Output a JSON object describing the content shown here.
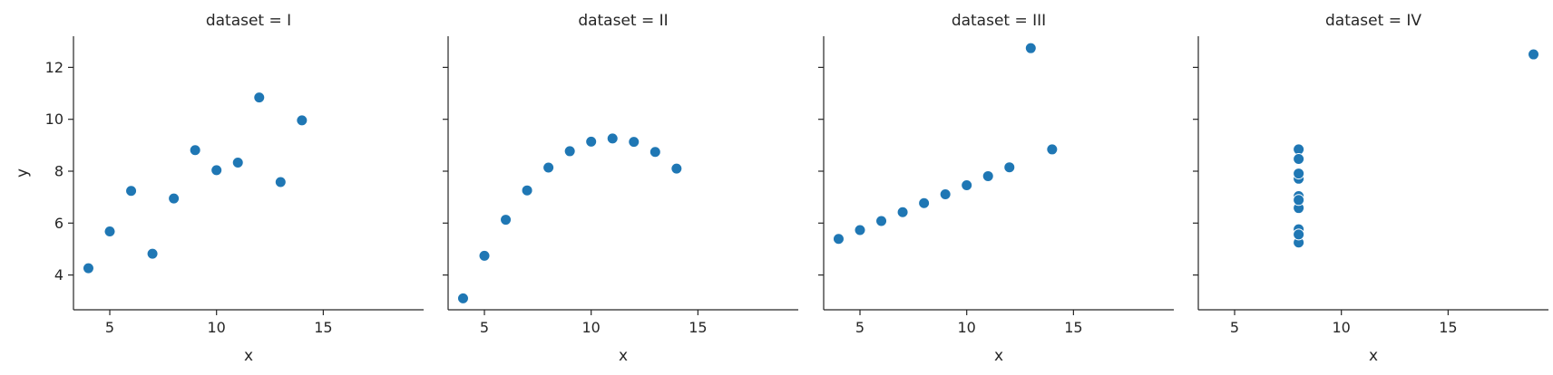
{
  "chart_data": {
    "type": "scatter",
    "xlabel": "x",
    "ylabel": "y",
    "xlim": [
      3.3,
      19.7
    ],
    "ylim": [
      2.66,
      13.2
    ],
    "xticks": [
      5,
      10,
      15
    ],
    "yticks": [
      4,
      6,
      8,
      10,
      12
    ],
    "grid": false,
    "point_color": "#1f77b4",
    "facets": [
      {
        "title": "dataset = I",
        "points": [
          [
            10,
            8.04
          ],
          [
            8,
            6.95
          ],
          [
            13,
            7.58
          ],
          [
            9,
            8.81
          ],
          [
            11,
            8.33
          ],
          [
            14,
            9.96
          ],
          [
            6,
            7.24
          ],
          [
            4,
            4.26
          ],
          [
            12,
            10.84
          ],
          [
            7,
            4.82
          ],
          [
            5,
            5.68
          ]
        ]
      },
      {
        "title": "dataset = II",
        "points": [
          [
            10,
            9.14
          ],
          [
            8,
            8.14
          ],
          [
            13,
            8.74
          ],
          [
            9,
            8.77
          ],
          [
            11,
            9.26
          ],
          [
            14,
            8.1
          ],
          [
            6,
            6.13
          ],
          [
            4,
            3.1
          ],
          [
            12,
            9.13
          ],
          [
            7,
            7.26
          ],
          [
            5,
            4.74
          ]
        ]
      },
      {
        "title": "dataset = III",
        "points": [
          [
            10,
            7.46
          ],
          [
            8,
            6.77
          ],
          [
            13,
            12.74
          ],
          [
            9,
            7.11
          ],
          [
            11,
            7.81
          ],
          [
            14,
            8.84
          ],
          [
            6,
            6.08
          ],
          [
            4,
            5.39
          ],
          [
            12,
            8.15
          ],
          [
            7,
            6.42
          ],
          [
            5,
            5.73
          ]
        ]
      },
      {
        "title": "dataset = IV",
        "points": [
          [
            8,
            6.58
          ],
          [
            8,
            5.76
          ],
          [
            8,
            7.71
          ],
          [
            8,
            8.84
          ],
          [
            8,
            8.47
          ],
          [
            8,
            7.04
          ],
          [
            8,
            5.25
          ],
          [
            19,
            12.5
          ],
          [
            8,
            5.56
          ],
          [
            8,
            7.91
          ],
          [
            8,
            6.89
          ]
        ]
      }
    ]
  }
}
